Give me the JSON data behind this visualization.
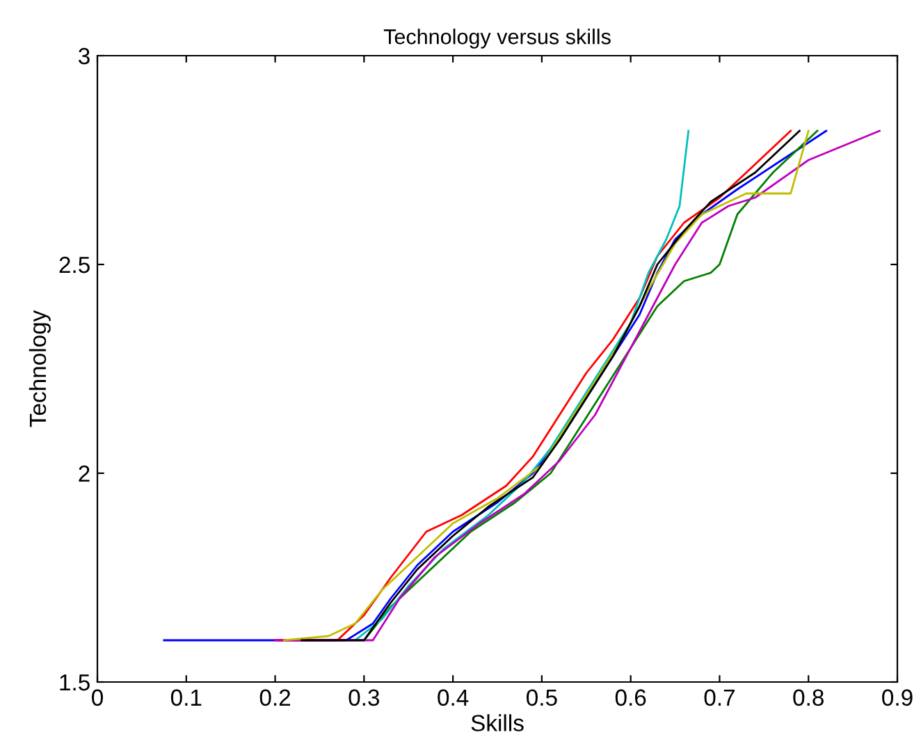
{
  "chart_data": {
    "type": "line",
    "title": "Technology versus skills",
    "xlabel": "Skills",
    "ylabel": "Technology",
    "xlim": [
      0,
      0.9
    ],
    "xticks": [
      0,
      0.1,
      0.2,
      0.3,
      0.4,
      0.5,
      0.6,
      0.7,
      0.8,
      0.9
    ],
    "ylim": [
      1.5,
      3
    ],
    "yticks": [
      1.5,
      2,
      2.5,
      3
    ],
    "grid": false,
    "legend": false,
    "marker": "none",
    "line_style": "solid",
    "series": [
      {
        "color": "#0000ff",
        "x": [
          0.075,
          0.2,
          0.28,
          0.31,
          0.33,
          0.36,
          0.4,
          0.45,
          0.49,
          0.52,
          0.55,
          0.58,
          0.61,
          0.63,
          0.65,
          0.68,
          0.72,
          0.77,
          0.82
        ],
        "values": [
          1.6,
          1.6,
          1.6,
          1.64,
          1.7,
          1.78,
          1.86,
          1.93,
          2.0,
          2.08,
          2.18,
          2.28,
          2.38,
          2.48,
          2.56,
          2.62,
          2.68,
          2.75,
          2.82
        ]
      },
      {
        "color": "#008000",
        "x": [
          0.3,
          0.33,
          0.37,
          0.42,
          0.47,
          0.51,
          0.54,
          0.57,
          0.6,
          0.63,
          0.66,
          0.69,
          0.7,
          0.72,
          0.76,
          0.81
        ],
        "values": [
          1.6,
          1.68,
          1.76,
          1.86,
          1.93,
          2.0,
          2.1,
          2.2,
          2.3,
          2.4,
          2.46,
          2.48,
          2.5,
          2.62,
          2.72,
          2.82
        ]
      },
      {
        "color": "#ff0000",
        "x": [
          0.2,
          0.27,
          0.3,
          0.33,
          0.37,
          0.41,
          0.46,
          0.49,
          0.52,
          0.55,
          0.58,
          0.61,
          0.63,
          0.66,
          0.7,
          0.74,
          0.78
        ],
        "values": [
          1.6,
          1.6,
          1.66,
          1.75,
          1.86,
          1.9,
          1.97,
          2.04,
          2.14,
          2.24,
          2.32,
          2.42,
          2.52,
          2.6,
          2.66,
          2.74,
          2.82
        ]
      },
      {
        "color": "#00bfbf",
        "x": [
          0.29,
          0.32,
          0.35,
          0.39,
          0.44,
          0.48,
          0.51,
          0.54,
          0.57,
          0.6,
          0.62,
          0.64,
          0.655,
          0.665
        ],
        "values": [
          1.6,
          1.65,
          1.73,
          1.82,
          1.9,
          1.98,
          2.06,
          2.16,
          2.26,
          2.36,
          2.48,
          2.56,
          2.64,
          2.82
        ]
      },
      {
        "color": "#bf00bf",
        "x": [
          0.2,
          0.31,
          0.34,
          0.38,
          0.43,
          0.48,
          0.52,
          0.56,
          0.59,
          0.62,
          0.65,
          0.68,
          0.71,
          0.74,
          0.8,
          0.88
        ],
        "values": [
          1.6,
          1.6,
          1.7,
          1.8,
          1.88,
          1.95,
          2.03,
          2.14,
          2.26,
          2.38,
          2.5,
          2.6,
          2.64,
          2.66,
          2.75,
          2.82
        ]
      },
      {
        "color": "#bfbf00",
        "x": [
          0.21,
          0.26,
          0.29,
          0.32,
          0.36,
          0.4,
          0.45,
          0.5,
          0.53,
          0.56,
          0.59,
          0.62,
          0.65,
          0.68,
          0.73,
          0.78,
          0.8
        ],
        "values": [
          1.6,
          1.61,
          1.64,
          1.72,
          1.8,
          1.88,
          1.94,
          2.02,
          2.12,
          2.22,
          2.32,
          2.44,
          2.55,
          2.62,
          2.67,
          2.67,
          2.82
        ]
      },
      {
        "color": "#000000",
        "x": [
          0.23,
          0.3,
          0.33,
          0.36,
          0.4,
          0.44,
          0.49,
          0.52,
          0.55,
          0.58,
          0.61,
          0.63,
          0.66,
          0.69,
          0.74,
          0.79
        ],
        "values": [
          1.6,
          1.6,
          1.69,
          1.77,
          1.85,
          1.92,
          1.99,
          2.08,
          2.18,
          2.28,
          2.4,
          2.5,
          2.58,
          2.65,
          2.72,
          2.82
        ]
      }
    ]
  }
}
